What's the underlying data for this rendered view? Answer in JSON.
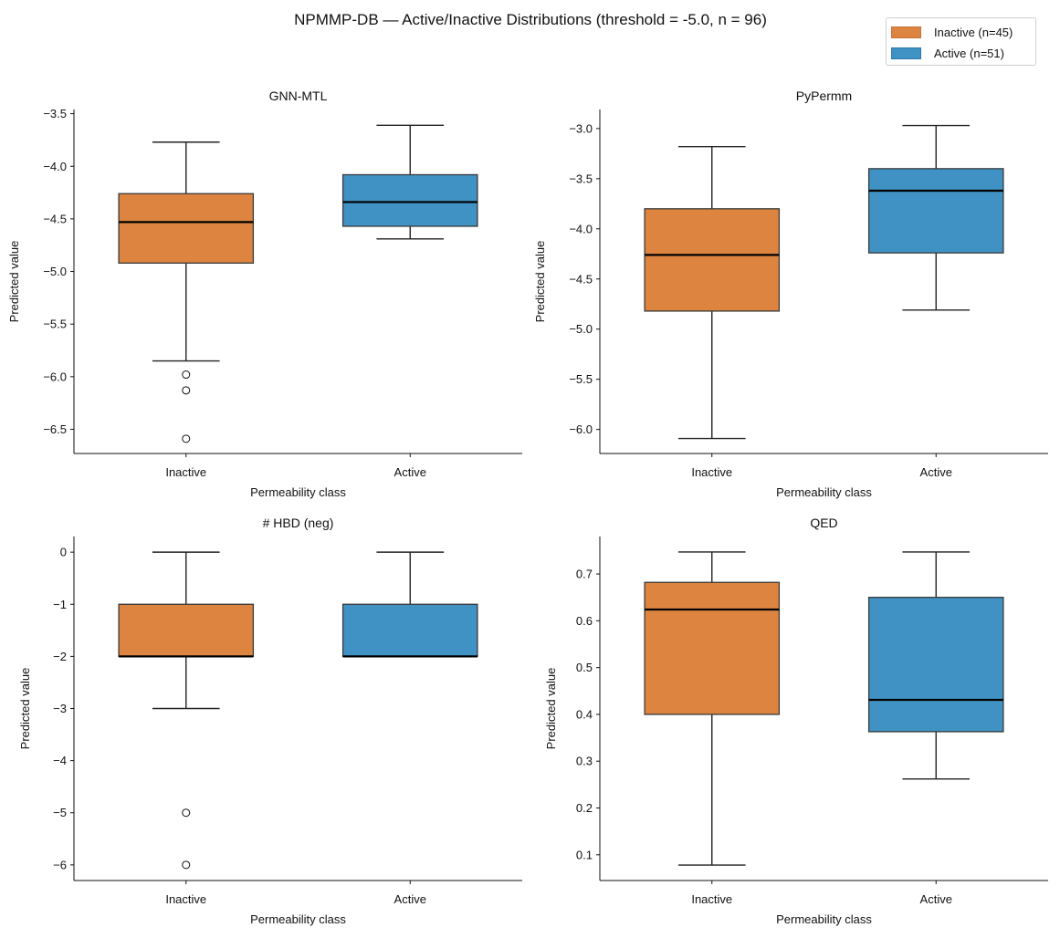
{
  "chart_data": {
    "type": "box",
    "title": "NPMMP-DB — Active/Inactive Distributions  (threshold = -5.0, n = 96)",
    "legend": {
      "placement": "top-right",
      "entries": [
        {
          "label": "Inactive (n=45)",
          "color": "#DD8540",
          "edge": "#C9733A"
        },
        {
          "label": "Active (n=51)",
          "color": "#3F92C3",
          "edge": "#2E7AAE"
        }
      ]
    },
    "categories": [
      "Inactive",
      "Active"
    ],
    "colors": {
      "Inactive": "#DD8540",
      "Active": "#3F92C3",
      "box_edge": "#3a3a3a",
      "median": "#000000",
      "whisker": "#222222"
    },
    "panels": [
      {
        "title": "GNN-MTL",
        "xlabel": "Permeability class",
        "ylabel": "Predicted value",
        "ylim": [
          -6.73,
          -3.46
        ],
        "yticks": [
          -3.5,
          -4.0,
          -4.5,
          -5.0,
          -5.5,
          -6.0,
          -6.5
        ],
        "ytick_labels": [
          "−3.5",
          "−4.0",
          "−4.5",
          "−5.0",
          "−5.5",
          "−6.0",
          "−6.5"
        ],
        "boxes": [
          {
            "category": "Inactive",
            "whisker_low": -5.85,
            "q1": -4.92,
            "median": -4.53,
            "q3": -4.26,
            "whisker_high": -3.77,
            "outliers": [
              -5.98,
              -6.13,
              -6.59
            ]
          },
          {
            "category": "Active",
            "whisker_low": -4.69,
            "q1": -4.57,
            "median": -4.34,
            "q3": -4.08,
            "whisker_high": -3.61,
            "outliers": []
          }
        ]
      },
      {
        "title": "PyPermm",
        "xlabel": "Permeability class",
        "ylabel": "Predicted value",
        "ylim": [
          -6.24,
          -2.81
        ],
        "yticks": [
          -3.0,
          -3.5,
          -4.0,
          -4.5,
          -5.0,
          -5.5,
          -6.0
        ],
        "ytick_labels": [
          "−3.0",
          "−3.5",
          "−4.0",
          "−4.5",
          "−5.0",
          "−5.5",
          "−6.0"
        ],
        "boxes": [
          {
            "category": "Inactive",
            "whisker_low": -6.09,
            "q1": -4.82,
            "median": -4.26,
            "q3": -3.8,
            "whisker_high": -3.18,
            "outliers": []
          },
          {
            "category": "Active",
            "whisker_low": -4.81,
            "q1": -4.24,
            "median": -3.62,
            "q3": -3.4,
            "whisker_high": -2.97,
            "outliers": []
          }
        ]
      },
      {
        "title": "# HBD (neg)",
        "xlabel": "Permeability class",
        "ylabel": "Predicted value",
        "ylim": [
          -6.3,
          0.3
        ],
        "yticks": [
          0,
          -1,
          -2,
          -3,
          -4,
          -5,
          -6
        ],
        "ytick_labels": [
          "0",
          "−1",
          "−2",
          "−3",
          "−4",
          "−5",
          "−6"
        ],
        "boxes": [
          {
            "category": "Inactive",
            "whisker_low": -3,
            "q1": -2,
            "median": -2,
            "q3": -1,
            "whisker_high": 0,
            "outliers": [
              -5,
              -6
            ]
          },
          {
            "category": "Active",
            "whisker_low": -2,
            "q1": -2,
            "median": -2,
            "q3": -1,
            "whisker_high": 0,
            "outliers": []
          }
        ]
      },
      {
        "title": "QED",
        "xlabel": "Permeability class",
        "ylabel": "Predicted value",
        "ylim": [
          0.045,
          0.78
        ],
        "yticks": [
          0.7,
          0.6,
          0.5,
          0.4,
          0.3,
          0.2,
          0.1
        ],
        "ytick_labels": [
          "0.7",
          "0.6",
          "0.5",
          "0.4",
          "0.3",
          "0.2",
          "0.1"
        ],
        "boxes": [
          {
            "category": "Inactive",
            "whisker_low": 0.078,
            "q1": 0.4,
            "median": 0.624,
            "q3": 0.682,
            "whisker_high": 0.747,
            "outliers": []
          },
          {
            "category": "Active",
            "whisker_low": 0.262,
            "q1": 0.363,
            "median": 0.431,
            "q3": 0.65,
            "whisker_high": 0.747,
            "outliers": []
          }
        ]
      }
    ]
  }
}
